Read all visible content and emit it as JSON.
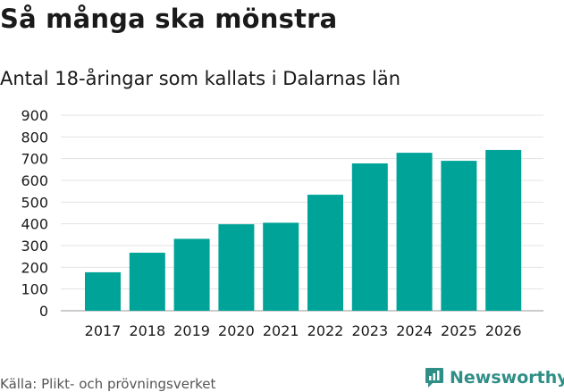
{
  "header": {
    "title": "Så många ska mönstra",
    "subtitle": "Antal 18-åringar som kallats i Dalarnas län"
  },
  "footer": {
    "source": "Källa: Plikt- och prövningsverket",
    "brand": "Newsworthy",
    "brand_icon": "newsworthy-logo-icon"
  },
  "colors": {
    "bar": "#00a398",
    "grid": "#e3e3e3",
    "brand": "#2f8f86"
  },
  "chart_data": {
    "type": "bar",
    "title": "Så många ska mönstra",
    "subtitle": "Antal 18-åringar som kallats i Dalarnas län",
    "xlabel": "",
    "ylabel": "",
    "categories": [
      "2017",
      "2018",
      "2019",
      "2020",
      "2021",
      "2022",
      "2023",
      "2024",
      "2025",
      "2026"
    ],
    "values": [
      177,
      267,
      331,
      398,
      405,
      534,
      678,
      727,
      690,
      740
    ],
    "ylim": [
      0,
      900
    ],
    "yticks": [
      0,
      100,
      200,
      300,
      400,
      500,
      600,
      700,
      800,
      900
    ],
    "grid": true
  }
}
